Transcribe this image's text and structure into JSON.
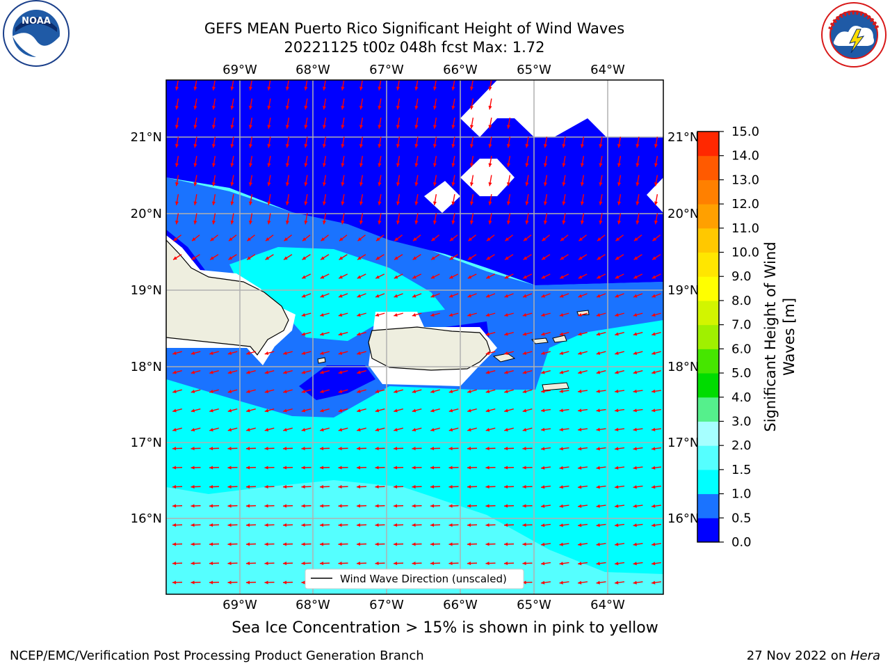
{
  "header": {
    "title_line1": "GEFS MEAN Puerto Rico Significant Height of Wind Waves",
    "title_line2": "20221125 t00z 048h fcst   Max: 1.72"
  },
  "logos": {
    "noaa_text": "NOAA",
    "noaa_ring_text": "NATIONAL OCEANIC AND ATMOSPHERIC ADMINISTRATION · U.S. DEPARTMENT OF COMMERCE",
    "nws_ring_text": "NATIONAL WEATHER SERVICE"
  },
  "map": {
    "lon_labels": [
      "69°W",
      "68°W",
      "67°W",
      "66°W",
      "65°W",
      "64°W"
    ],
    "lat_labels": [
      "21°N",
      "20°N",
      "19°N",
      "18°N",
      "17°N",
      "16°N"
    ],
    "legend_label": "Wind Wave Direction (unscaled)"
  },
  "colorbar": {
    "label_line1": "Significant Height of Wind",
    "label_line2": "Waves [m]",
    "ticks": [
      "0.0",
      "0.5",
      "1.0",
      "1.5",
      "2.0",
      "3.0",
      "4.0",
      "5.0",
      "6.0",
      "7.0",
      "8.0",
      "9.0",
      "10.0",
      "11.0",
      "12.0",
      "13.0",
      "14.0",
      "15.0"
    ],
    "colors": [
      "#0000ff",
      "#1a73ff",
      "#00ffff",
      "#55ffff",
      "#a6ffff",
      "#55f08c",
      "#00dc00",
      "#46e600",
      "#a0f000",
      "#d2f500",
      "#ffff00",
      "#ffe600",
      "#ffc800",
      "#ffa000",
      "#ff8000",
      "#ff5a00",
      "#ff2800"
    ]
  },
  "colors": {
    "land": "#eeeedf",
    "arrow": "#ff0000",
    "grid": "#b0b0b0"
  },
  "footer": {
    "note": "Sea Ice Concentration > 15% is shown in pink to yellow",
    "left": "NCEP/EMC/Verification Post Processing Product Generation Branch",
    "right_prefix": "27 Nov 2022 on ",
    "right_host": "Hera"
  }
}
